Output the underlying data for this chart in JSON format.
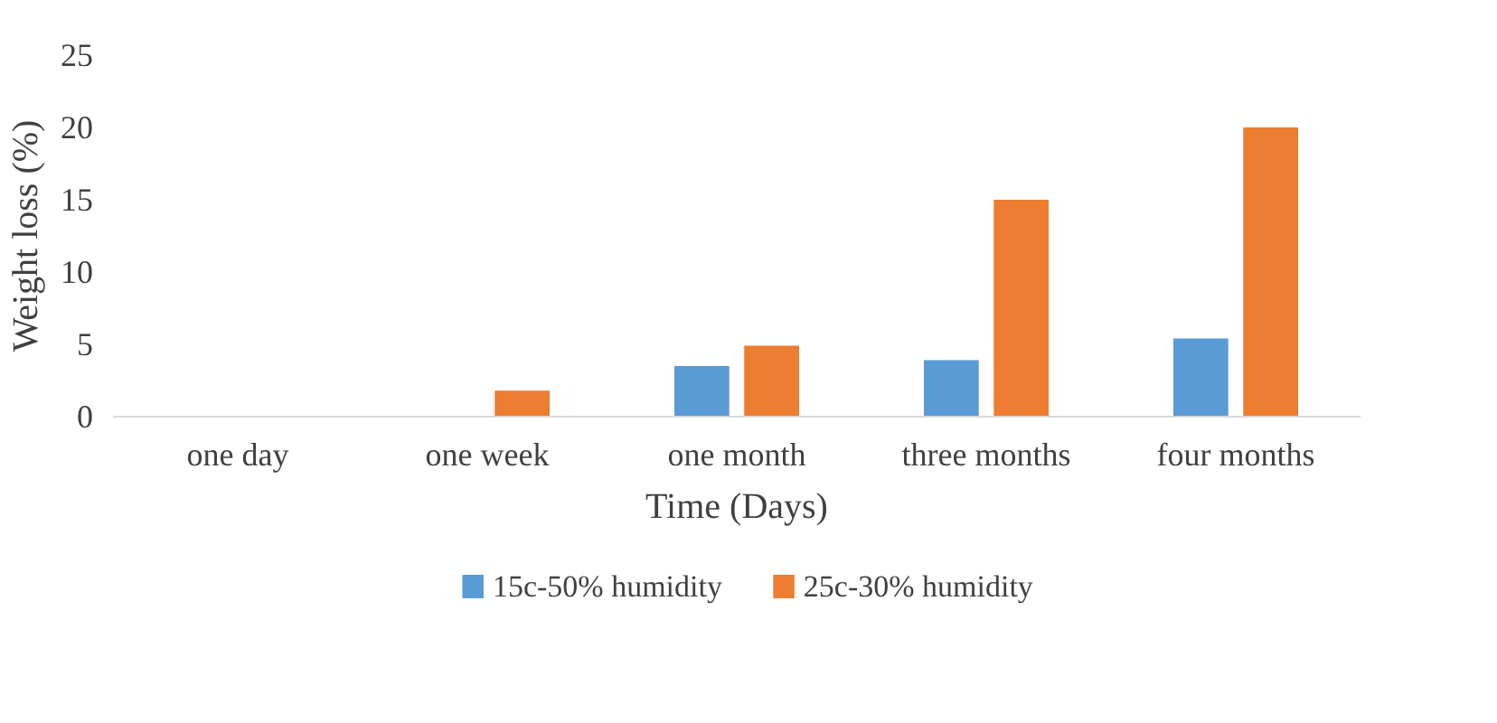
{
  "chart_data": {
    "type": "bar",
    "xlabel": "Time (Days)",
    "ylabel": "Weight loss (%)",
    "categories": [
      "one day",
      "one week",
      "one month",
      "three months",
      "four months"
    ],
    "series": [
      {
        "name": "15c-50% humidity",
        "color": "#5b9bd5",
        "values": [
          0,
          0,
          3.5,
          3.9,
          5.4
        ]
      },
      {
        "name": "25c-30% humidity",
        "color": "#ed7d31",
        "values": [
          0,
          1.8,
          4.9,
          15,
          20
        ]
      }
    ],
    "ylim": [
      0,
      25
    ],
    "yticks": [
      0,
      5,
      10,
      15,
      20,
      25
    ],
    "grid": false,
    "legend": "bottom"
  }
}
